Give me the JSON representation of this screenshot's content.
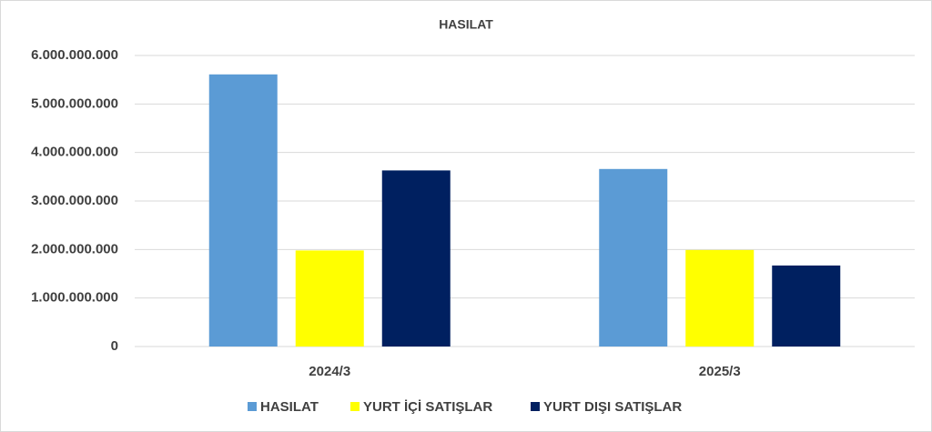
{
  "chart_data": {
    "type": "bar",
    "title": "HASILAT",
    "categories": [
      "2024/3",
      "2025/3"
    ],
    "series": [
      {
        "name": "HASILAT",
        "color": "#5b9bd5",
        "values": [
          5610000000,
          3660000000
        ]
      },
      {
        "name": "YURT İÇİ SATIŞLAR",
        "color": "#ffff00",
        "values": [
          1980000000,
          1990000000
        ]
      },
      {
        "name": "YURT DIŞI SATIŞLAR",
        "color": "#002060",
        "values": [
          3630000000,
          1670000000
        ]
      }
    ],
    "ylim": [
      0,
      6000000000
    ],
    "yticks": [
      0,
      {
        "value": 1000000000,
        "label": "1.000.000.000"
      },
      {
        "value": 2000000000,
        "label": "2.000.000.000"
      },
      {
        "value": 3000000000,
        "label": "3.000.000.000"
      },
      {
        "value": 4000000000,
        "label": "4.000.000.000"
      },
      {
        "value": 5000000000,
        "label": "5.000.000.000"
      },
      {
        "value": 6000000000,
        "label": "6.000.000.000"
      }
    ],
    "grid": true,
    "legend": "bottom"
  }
}
